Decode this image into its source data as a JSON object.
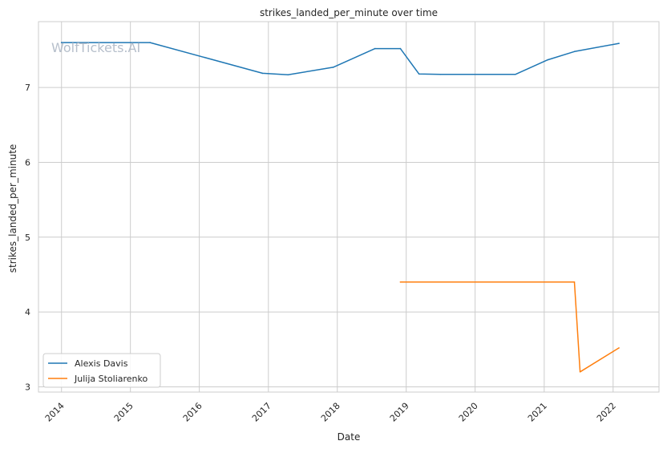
{
  "watermark": "WolfTickets.AI",
  "chart_data": {
    "type": "line",
    "title": "strikes_landed_per_minute over time",
    "xlabel": "Date",
    "ylabel": "strikes_landed_per_minute",
    "x_ticks": [
      "2014",
      "2015",
      "2016",
      "2017",
      "2018",
      "2019",
      "2020",
      "2021",
      "2022"
    ],
    "y_ticks": [
      "3",
      "4",
      "5",
      "6",
      "7"
    ],
    "xlim": [
      "2013-09-01",
      "2022-09-01"
    ],
    "ylim": [
      2.93,
      7.88
    ],
    "grid": true,
    "legend_position": "lower-left",
    "series": [
      {
        "name": "Alexis Davis",
        "color": "#1f77b4",
        "x": [
          "2014-01-01",
          "2015-04-15",
          "2016-12-01",
          "2017-04-15",
          "2017-12-10",
          "2018-07-20",
          "2018-12-01",
          "2019-03-10",
          "2019-07-01",
          "2020-08-01",
          "2021-01-20",
          "2021-06-10",
          "2022-02-01"
        ],
        "y": [
          7.6,
          7.6,
          7.19,
          7.17,
          7.27,
          7.52,
          7.52,
          7.18,
          7.175,
          7.175,
          7.37,
          7.48,
          7.59
        ]
      },
      {
        "name": "Julija Stoliarenko",
        "color": "#ff7f0e",
        "x": [
          "2018-12-01",
          "2021-06-10",
          "2021-07-10",
          "2022-02-01"
        ],
        "y": [
          4.4,
          4.4,
          3.2,
          3.52
        ]
      }
    ]
  }
}
